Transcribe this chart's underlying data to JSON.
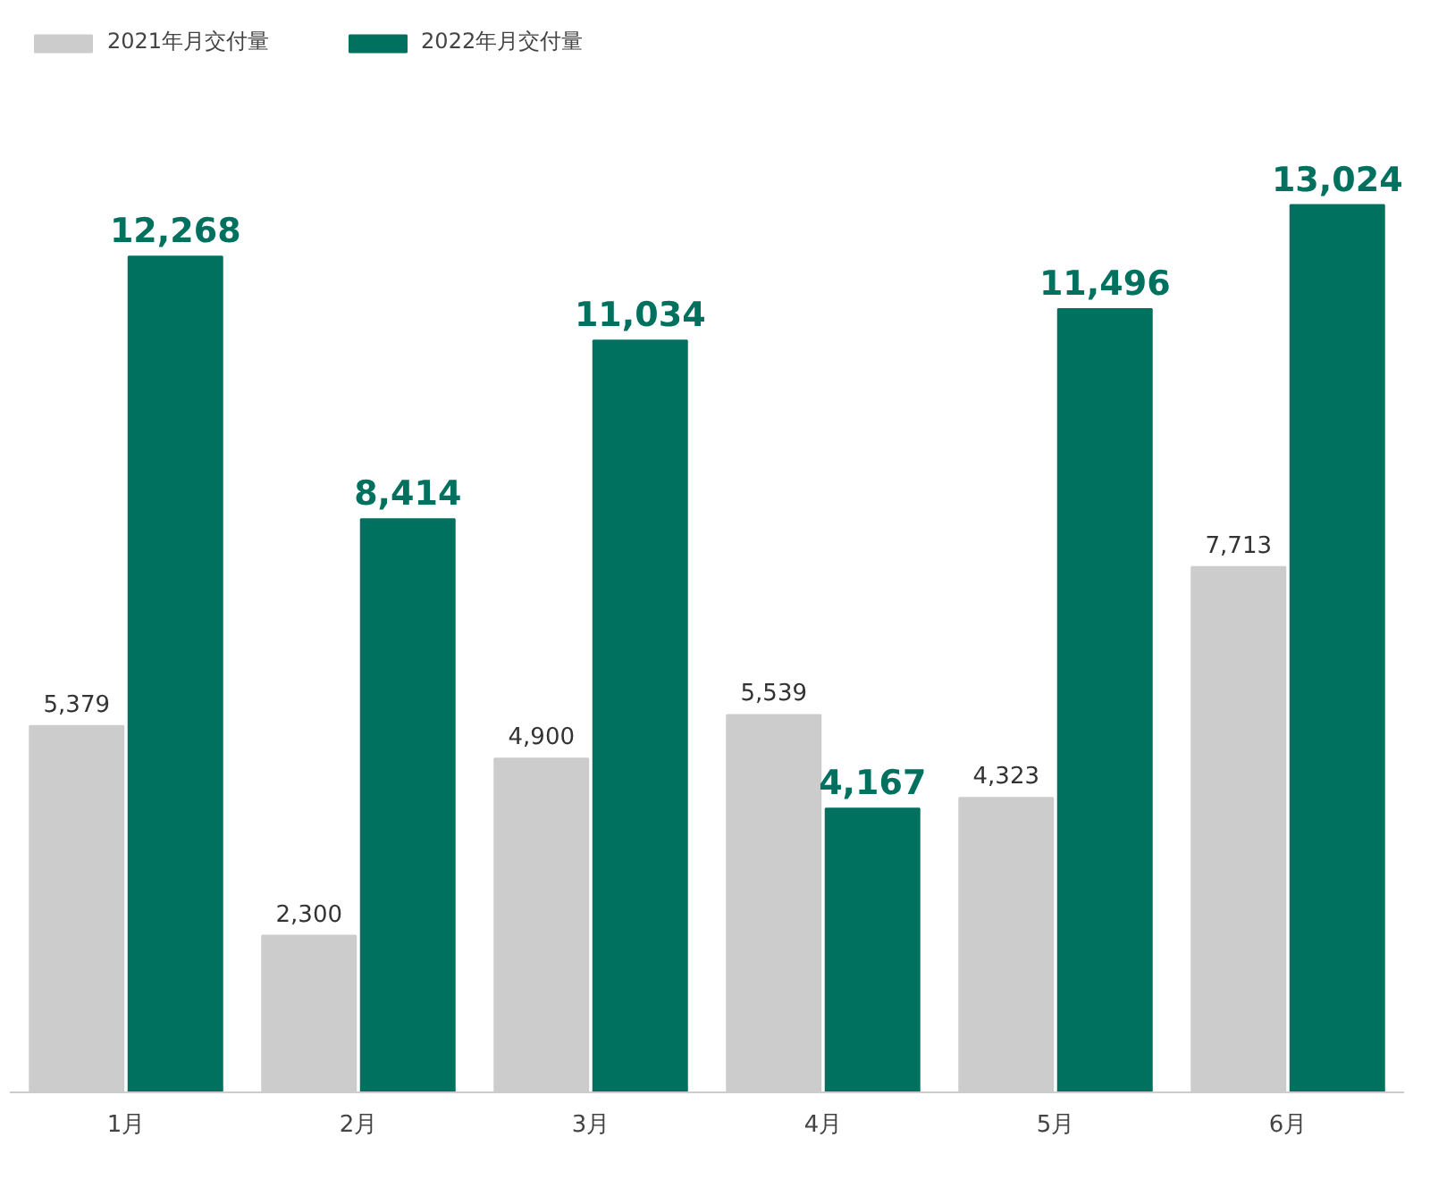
{
  "chart_data": {
    "type": "bar",
    "categories": [
      "1月",
      "2月",
      "3月",
      "4月",
      "5月",
      "6月"
    ],
    "series": [
      {
        "name": "2021年月交付量",
        "color": "#cccccc",
        "values": [
          5379,
          2300,
          4900,
          5539,
          4323,
          7713
        ],
        "value_labels": [
          "5,379",
          "2,300",
          "4,900",
          "5,539",
          "4,323",
          "7,713"
        ]
      },
      {
        "name": "2022年月交付量",
        "color": "#00705f",
        "values": [
          12268,
          8414,
          11034,
          4167,
          11496,
          13024
        ],
        "value_labels": [
          "12,268",
          "8,414",
          "11,034",
          "4,167",
          "11,496",
          "13,024"
        ]
      }
    ],
    "legend": "top left",
    "grid": false
  }
}
